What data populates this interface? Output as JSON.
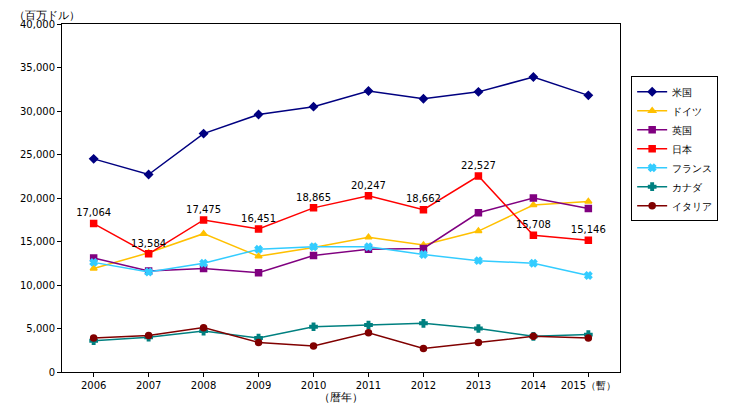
{
  "chart_data": {
    "type": "line",
    "y_label": "（百万ドル）",
    "x_label": "（暦年）",
    "categories": [
      "2006",
      "2007",
      "2008",
      "2009",
      "2010",
      "2011",
      "2012",
      "2013",
      "2014",
      "2015（暫）"
    ],
    "series": [
      {
        "name": "米国",
        "color": "#000080",
        "marker": "diamond",
        "line_style": "solid",
        "values": [
          24500,
          22700,
          27400,
          29600,
          30500,
          32300,
          31400,
          32200,
          33900,
          31800
        ]
      },
      {
        "name": "ドイツ",
        "color": "#FFC000",
        "marker": "triangle-up",
        "line_style": "solid",
        "values": [
          11900,
          13700,
          15900,
          13300,
          14300,
          15500,
          14600,
          16200,
          19200,
          19600
        ]
      },
      {
        "name": "英国",
        "color": "#800080",
        "marker": "square",
        "line_style": "solid",
        "values": [
          13100,
          11600,
          11900,
          11400,
          13400,
          14100,
          14200,
          18300,
          20000,
          18800
        ]
      },
      {
        "name": "日本",
        "color": "#FF0000",
        "marker": "square",
        "line_style": "solid",
        "data_labels": true,
        "values": [
          17064,
          13584,
          17475,
          16451,
          18865,
          20247,
          18662,
          22527,
          15708,
          15146
        ],
        "value_labels": [
          "17,064",
          "13,584",
          "17,475",
          "16,451",
          "18,865",
          "20,247",
          "18,662",
          "22,527",
          "15,708",
          "15,146"
        ]
      },
      {
        "name": "フランス",
        "color": "#33CCFF",
        "marker": "x",
        "line_style": "solid",
        "values": [
          12600,
          11500,
          12500,
          14100,
          14400,
          14400,
          13500,
          12800,
          12500,
          11100
        ]
      },
      {
        "name": "カナダ",
        "color": "#008080",
        "marker": "cross",
        "line_style": "solid",
        "values": [
          3600,
          4000,
          4700,
          3900,
          5200,
          5400,
          5600,
          5000,
          4100,
          4300
        ]
      },
      {
        "name": "イタリア",
        "color": "#800000",
        "marker": "circle",
        "line_style": "solid",
        "values": [
          3900,
          4200,
          5100,
          3400,
          3000,
          4500,
          2700,
          3400,
          4100,
          3900
        ]
      }
    ],
    "ylim": [
      0,
      40000
    ],
    "yticks": [
      0,
      {
        "value": 5000,
        "label": "5,000"
      },
      {
        "value": 10000,
        "label": "10,000"
      },
      {
        "value": 15000,
        "label": "15,000"
      },
      {
        "value": 20000,
        "label": "20,000"
      },
      {
        "value": 25000,
        "label": "25,000"
      },
      {
        "value": 30000,
        "label": "30,000"
      },
      {
        "value": 35000,
        "label": "35,000"
      },
      {
        "value": 40000,
        "label": "40,000"
      }
    ],
    "grid": false,
    "legend": "right"
  }
}
